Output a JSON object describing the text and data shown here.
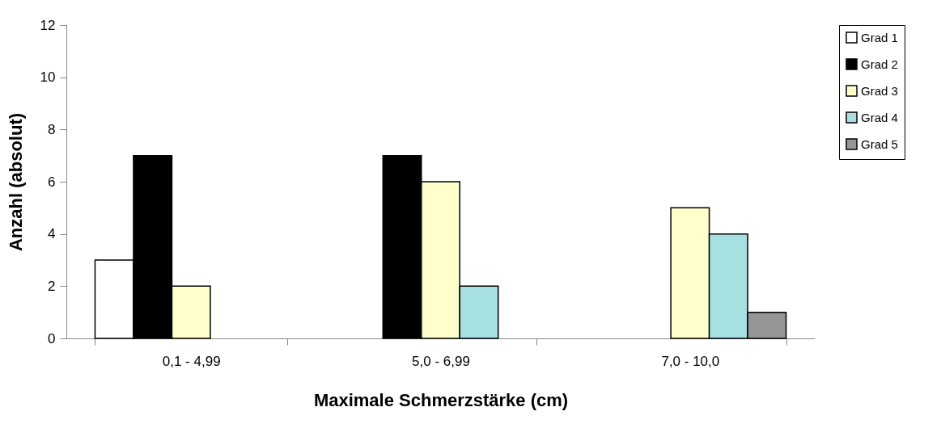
{
  "chart_data": {
    "type": "bar",
    "xlabel": "Maximale Schmerzstärke (cm)",
    "ylabel": "Anzahl (absolut)",
    "categories": [
      "0,1 - 4,99",
      "5,0 - 6,99",
      "7,0 - 10,0"
    ],
    "series": [
      {
        "name": "Grad 1",
        "color": "#ffffff",
        "values": [
          3,
          null,
          null
        ]
      },
      {
        "name": "Grad 2",
        "color": "#000000",
        "values": [
          7,
          7,
          null
        ]
      },
      {
        "name": "Grad 3",
        "color": "#ffffcc",
        "values": [
          2,
          6,
          5
        ]
      },
      {
        "name": "Grad 4",
        "color": "#a6e0e0",
        "values": [
          null,
          2,
          4
        ]
      },
      {
        "name": "Grad 5",
        "color": "#969696",
        "values": [
          null,
          null,
          1
        ]
      }
    ],
    "ylim": [
      0,
      12
    ],
    "yticks": [
      0,
      2,
      4,
      6,
      8,
      10,
      12
    ],
    "grid": false,
    "legend": "right"
  }
}
